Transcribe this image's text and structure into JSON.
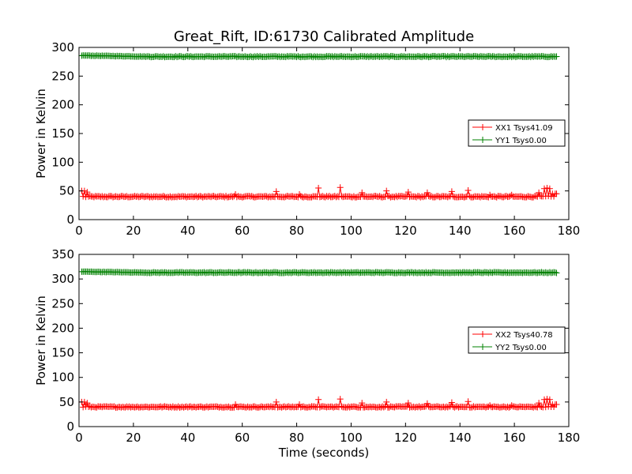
{
  "title": "Great_Rift, ID:61730 Calibrated Amplitude",
  "chart_data": [
    {
      "type": "line",
      "ylabel": "Power in Kelvin",
      "xlabel": "",
      "xlim": [
        0,
        180
      ],
      "ylim": [
        0,
        300
      ],
      "xticks": [
        "0",
        "20",
        "40",
        "60",
        "80",
        "100",
        "120",
        "140",
        "160",
        "180"
      ],
      "yticks": [
        "0",
        "50",
        "100",
        "150",
        "200",
        "250",
        "300"
      ],
      "legend_position": "right",
      "series": [
        {
          "name": "XX1 Tsys41.09",
          "color": "#ff0000",
          "x_range": [
            1,
            175.5
          ],
          "baseline": 40,
          "noise": 1.2,
          "spikes": [
            [
              1,
              50
            ],
            [
              2,
              50
            ],
            [
              3,
              48
            ],
            [
              57.5,
              44
            ],
            [
              72.5,
              49
            ],
            [
              81,
              44
            ],
            [
              88,
              55
            ],
            [
              96,
              56
            ],
            [
              104,
              47
            ],
            [
              113,
              50
            ],
            [
              121,
              48
            ],
            [
              128,
              47
            ],
            [
              137,
              49
            ],
            [
              143,
              51
            ],
            [
              151,
              43
            ],
            [
              159,
              43
            ],
            [
              169,
              47
            ],
            [
              171,
              54
            ],
            [
              172,
              55
            ],
            [
              173,
              54
            ],
            [
              174,
              45
            ],
            [
              175,
              45
            ],
            [
              175.5,
              45
            ]
          ]
        },
        {
          "name": "YY1 Tsys0.00",
          "color": "#008000",
          "x_range": [
            1,
            175.5
          ],
          "baseline": 284,
          "start_value": 286,
          "noise": 0.8,
          "spikes": []
        }
      ]
    },
    {
      "type": "line",
      "ylabel": "Power in Kelvin",
      "xlabel": "Time (seconds)",
      "xlim": [
        0,
        180
      ],
      "ylim": [
        0,
        350
      ],
      "xticks": [
        "0",
        "20",
        "40",
        "60",
        "80",
        "100",
        "120",
        "140",
        "160",
        "180"
      ],
      "yticks": [
        "0",
        "50",
        "100",
        "150",
        "200",
        "250",
        "300",
        "350"
      ],
      "legend_position": "right",
      "series": [
        {
          "name": "XX2 Tsys40.78",
          "color": "#ff0000",
          "x_range": [
            1,
            175.5
          ],
          "baseline": 40,
          "noise": 1.2,
          "spikes": [
            [
              1,
              50
            ],
            [
              2,
              50
            ],
            [
              3,
              48
            ],
            [
              57.5,
              45
            ],
            [
              72.5,
              50
            ],
            [
              81,
              45
            ],
            [
              88,
              55
            ],
            [
              96,
              56
            ],
            [
              104,
              48
            ],
            [
              113,
              50
            ],
            [
              121,
              48
            ],
            [
              128,
              47
            ],
            [
              137,
              49
            ],
            [
              143,
              51
            ],
            [
              151,
              43
            ],
            [
              159,
              43
            ],
            [
              169,
              48
            ],
            [
              171,
              55
            ],
            [
              172,
              56
            ],
            [
              173,
              55
            ],
            [
              174,
              45
            ],
            [
              175,
              45
            ],
            [
              175.5,
              45
            ]
          ]
        },
        {
          "name": "YY2 Tsys0.00",
          "color": "#008000",
          "x_range": [
            1,
            175.5
          ],
          "baseline": 313,
          "start_value": 315,
          "noise": 0.8,
          "spikes": []
        }
      ]
    }
  ]
}
